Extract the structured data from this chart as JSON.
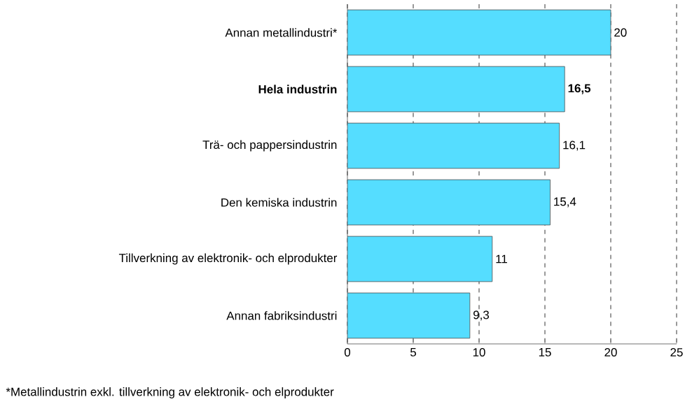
{
  "chart_data": {
    "type": "bar",
    "orientation": "horizontal",
    "categories": [
      "Annan metallindustri*",
      "**Hela industrin**",
      "Trä- och pappersindustrin",
      "Den kemiska industrin",
      "Tillverkning av elektronik- och elprodukter",
      "Annan fabriksindustri"
    ],
    "values": [
      20,
      16.5,
      16.1,
      15.4,
      11,
      9.3
    ],
    "value_labels": [
      "20",
      "**16,5**",
      "16,1",
      "15,4",
      "11",
      "9,3"
    ],
    "color": "#55DDFF",
    "xlim": [
      0,
      25
    ],
    "xticks": [
      0,
      5,
      10,
      15,
      20,
      25
    ],
    "grid": "x",
    "annotations": [
      "*Metallindustrin exkl. tillverkning av elektronik- och elprodukter"
    ]
  }
}
